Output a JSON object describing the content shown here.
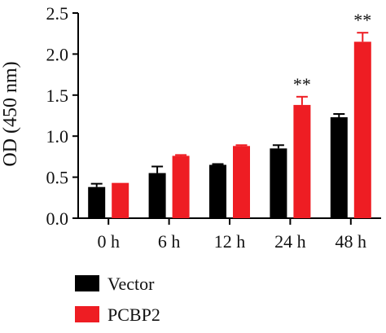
{
  "chart_data": {
    "type": "bar",
    "ylabel": "OD (450 nm)",
    "ylim": [
      0,
      2.5
    ],
    "yticks": [
      0.0,
      0.5,
      1.0,
      1.5,
      2.0,
      2.5
    ],
    "ytick_labels": [
      "0.0",
      "0.5",
      "1.0",
      "1.5",
      "2.0",
      "2.5"
    ],
    "categories": [
      "0 h",
      "6 h",
      "12 h",
      "24 h",
      "48 h"
    ],
    "series": [
      {
        "name": "Vector",
        "color": "#000000",
        "values": [
          0.38,
          0.55,
          0.65,
          0.85,
          1.23
        ],
        "errors": [
          0.04,
          0.08,
          0.01,
          0.04,
          0.04
        ]
      },
      {
        "name": "PCBP2",
        "color": "#ee1d23",
        "values": [
          0.43,
          0.76,
          0.88,
          1.38,
          2.15
        ],
        "errors": [
          0.0,
          0.01,
          0.01,
          0.1,
          0.11
        ],
        "annotations": [
          "",
          "",
          "",
          "**",
          "**"
        ]
      }
    ],
    "legend_placement": "bottom-left",
    "grid": false
  }
}
